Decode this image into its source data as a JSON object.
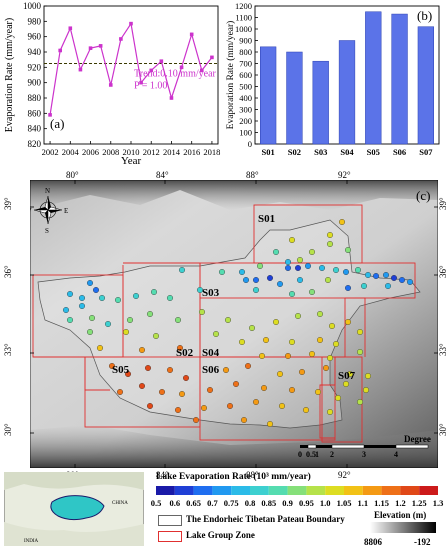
{
  "panels": {
    "a": {
      "tag": "(a)",
      "xlabel": "Year",
      "ylabel": "Evaporation Rate (mm/year)",
      "trend_text": "Trend:0.10 mm/year",
      "p_text": "P = 1.00",
      "line_color": "#cc33cc",
      "mean_line_color": "#3a3a00"
    },
    "b": {
      "tag": "(b)",
      "ylabel": "Evaporation Rate (mm/year)",
      "bar_color": "#5b73e8"
    },
    "c": {
      "tag": "(c)",
      "zones": [
        "S01",
        "S02",
        "S03",
        "S04",
        "S05",
        "S06",
        "S07"
      ],
      "lon_labels": [
        "80°",
        "84°",
        "88°",
        "92°"
      ],
      "lat_labels": [
        "39°",
        "36°",
        "33°",
        "30°"
      ],
      "compass": {
        "n": "N",
        "s": "S",
        "e": "E",
        "w": "W"
      },
      "scale_label": "Degree",
      "scale_ticks": [
        "0",
        "0.5",
        "1",
        "2",
        "3",
        "4"
      ]
    }
  },
  "legend": {
    "colorbar_title": "Lake Evaporation Rate (10³ mm/year)",
    "colorbar_ticks": [
      "0.5",
      "0.6",
      "0.65",
      "0.7",
      "0.75",
      "0.8",
      "0.85",
      "0.9",
      "0.95",
      "1.0",
      "1.05",
      "1.1",
      "1.15",
      "1.2",
      "1.25",
      "1.3"
    ],
    "colorbar_colors": [
      "#1a1aa8",
      "#1f3fd6",
      "#1f6ef0",
      "#2199f0",
      "#2bbbe8",
      "#3dd0d0",
      "#55dcb0",
      "#86e07a",
      "#b6e24a",
      "#dddd22",
      "#f2c216",
      "#f49a14",
      "#ee7018",
      "#e04818",
      "#cc1a1a"
    ],
    "boundary_label": "The Endorheic Tibetan Pateau Boundary",
    "zone_label": "Lake Group Zone",
    "elevation_title": "Elevation (m)",
    "elevation_max": "8806",
    "elevation_min": "-192",
    "inset_labels": [
      "CHINA",
      "INDIA"
    ]
  },
  "chart_data": [
    {
      "type": "line",
      "title": "",
      "xlabel": "Year",
      "ylabel": "Evaporation Rate (mm/year)",
      "x": [
        2002,
        2003,
        2004,
        2005,
        2006,
        2007,
        2008,
        2009,
        2010,
        2011,
        2012,
        2013,
        2014,
        2015,
        2016,
        2017,
        2018
      ],
      "series": [
        {
          "values": [
            858,
            942,
            971,
            917,
            945,
            948,
            897,
            957,
            977,
            900,
            916,
            928,
            880,
            920,
            963,
            916,
            933
          ]
        }
      ],
      "mean": 925,
      "xlim": [
        2001.4,
        2018.6
      ],
      "ylim": [
        820,
        1000
      ],
      "yticks": [
        820,
        840,
        860,
        880,
        900,
        920,
        940,
        960,
        980,
        1000
      ],
      "xticks": [
        2002,
        2004,
        2006,
        2008,
        2010,
        2012,
        2014,
        2016,
        2018
      ],
      "annotations": [
        "Trend:0.10 mm/year",
        "P = 1.00"
      ]
    },
    {
      "type": "bar",
      "title": "",
      "ylabel": "Evaporation Rate (mm/year)",
      "categories": [
        "S01",
        "S02",
        "S03",
        "S04",
        "S05",
        "S06",
        "S07"
      ],
      "values": [
        845,
        800,
        720,
        900,
        1150,
        1130,
        1020
      ],
      "ylim": [
        0,
        1200
      ],
      "yticks": [
        0,
        100,
        200,
        300,
        400,
        500,
        600,
        700,
        800,
        900,
        1000,
        1100,
        1200
      ]
    }
  ]
}
